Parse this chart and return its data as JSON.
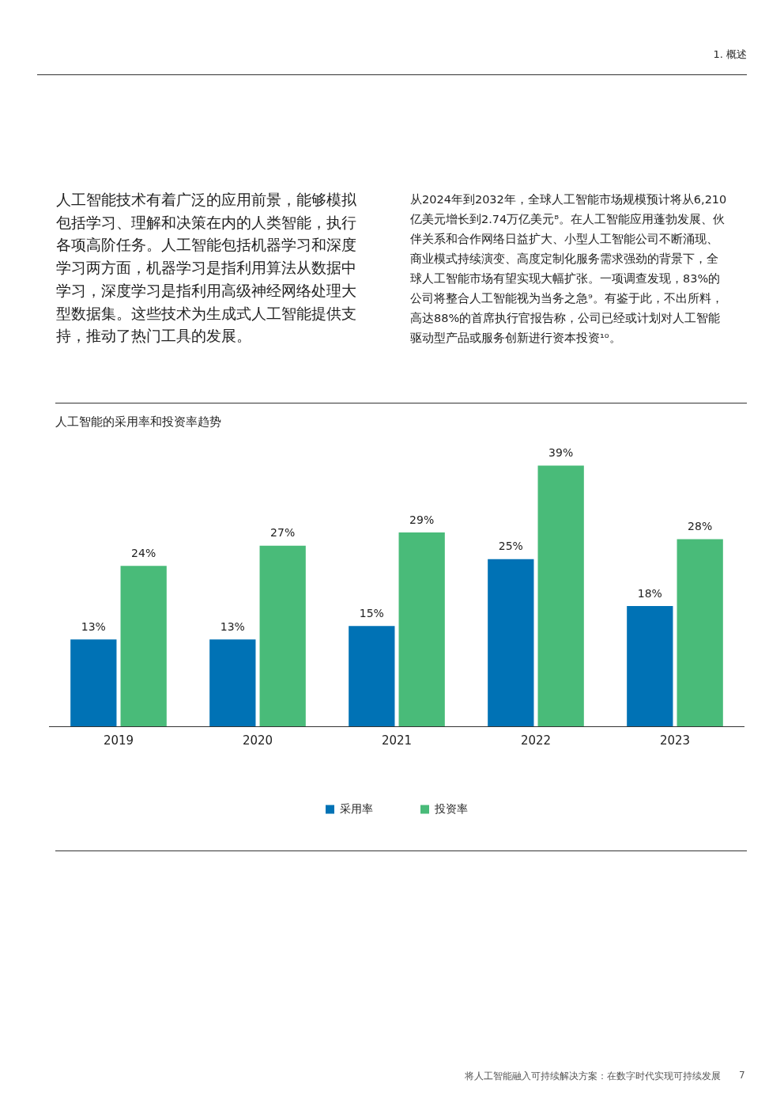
{
  "chart_data": {
    "type": "bar",
    "title": "人工智能的采用率和投资率趋势",
    "categories": [
      "2019",
      "2020",
      "2021",
      "2022",
      "2023"
    ],
    "series": [
      {
        "name": "采用率",
        "color": "#0072b5",
        "values": [
          13,
          13,
          15,
          25,
          18
        ],
        "value_labels": [
          "13%",
          "13%",
          "15%",
          "25%",
          "18%"
        ]
      },
      {
        "name": "投资率",
        "color": "#49bb79",
        "values": [
          24,
          27,
          29,
          39,
          28
        ],
        "value_labels": [
          "24%",
          "27%",
          "29%",
          "39%",
          "28%"
        ]
      }
    ],
    "legend": "bottom",
    "grid": false,
    "tick_labels": "x",
    "annotations": [
      "1. 概述",
      "人工智能技术有着广泛的应用前景，能够模拟包括学习、理解和决策在内的人类智能，执行各项高阶任务。人工智能包括机器学习和深度学习两方面，机器学习是指利用算法从数据中学习，深度学习是指利用高级神经网络处理大型数据集。这些技术为生成式人工智能提供支持，推动了热门工具的发展。",
      "从2024年到2032年，全球人工智能市场规模预计将从6,210亿美元增长到2.74万亿美元⁸。在人工智能应用蓬勃发展、伙伴关系和合作网络日益扩大、小型人工智能公司不断涌现、商业模式持续演变、高度定制化服务需求强劲的背景下，全球人工智能市场有望实现大幅扩张。一项调查发现，83%的公司将整合人工智能视为当务之急⁹。有鉴于此，不出所料，高达88%的首席执行官报告称，公司已经或计划对人工智能驱动型产品或服务创新进行资本投资¹⁰。",
      "将人工智能融入可持续解决方案：在数字时代实现可持续发展",
      "7"
    ]
  }
}
